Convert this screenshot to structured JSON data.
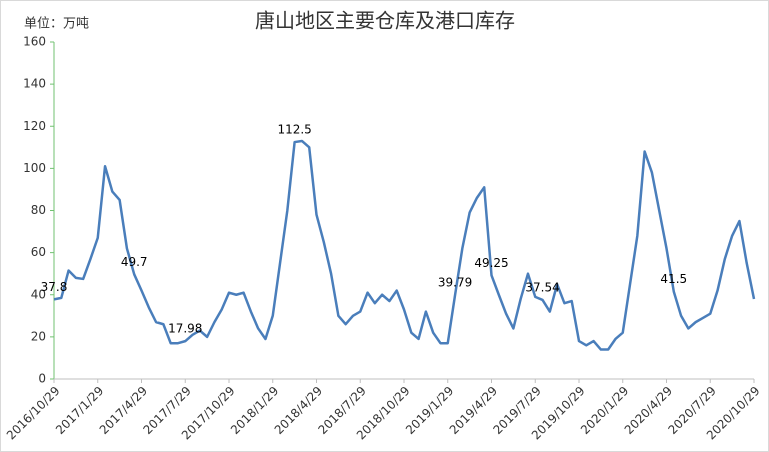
{
  "chart_data": {
    "type": "line",
    "title": "唐山地区主要仓库及港口库存",
    "unit_label": "单位：万吨",
    "categories": [
      "2016/10/29",
      null,
      null,
      null,
      null,
      null,
      "2017/1/29",
      null,
      null,
      null,
      null,
      null,
      "2017/4/29",
      null,
      null,
      null,
      null,
      null,
      "2017/7/29",
      null,
      null,
      null,
      null,
      null,
      "2017/10/29",
      null,
      null,
      null,
      null,
      null,
      "2018/1/29",
      null,
      null,
      null,
      null,
      null,
      "2018/4/29",
      null,
      null,
      null,
      null,
      null,
      "2018/7/29",
      null,
      null,
      null,
      null,
      null,
      "2018/10/29",
      null,
      null,
      null,
      null,
      null,
      "2019/1/29",
      null,
      null,
      null,
      null,
      null,
      "2019/4/29",
      null,
      null,
      null,
      null,
      null,
      "2019/7/29",
      null,
      null,
      null,
      null,
      null,
      "2019/10/29",
      null,
      null,
      null,
      null,
      null,
      "2020/1/29",
      null,
      null,
      null,
      null,
      null,
      "2020/4/29",
      null,
      null,
      null,
      null,
      null,
      "2020/7/29",
      null,
      null,
      null,
      null,
      null,
      "2020/10/29"
    ],
    "values": [
      37.8,
      38.5,
      51.5,
      48,
      47.5,
      57,
      67,
      101,
      89,
      85,
      62,
      49.7,
      42,
      34,
      27,
      26,
      17,
      17,
      17.98,
      21,
      23,
      20,
      27,
      33,
      41,
      40,
      41,
      32,
      24,
      19,
      30,
      55,
      80,
      112.5,
      113,
      110,
      78,
      65,
      50,
      30,
      26,
      30,
      32,
      41,
      36,
      40,
      37,
      42,
      33,
      22,
      19,
      32,
      22,
      17,
      17,
      39.79,
      62,
      79,
      86,
      91,
      49.25,
      40,
      31,
      24,
      38,
      50,
      39,
      37.54,
      32,
      45,
      36,
      37,
      18,
      16,
      18,
      14,
      14,
      19,
      22,
      45,
      68,
      108,
      98,
      80,
      62,
      41.5,
      30,
      24,
      27,
      29,
      31,
      42,
      57,
      68,
      75,
      55,
      38
    ],
    "value_labels": [
      "37.8",
      null,
      null,
      null,
      null,
      null,
      null,
      null,
      null,
      null,
      null,
      "49.7",
      null,
      null,
      null,
      null,
      null,
      null,
      "17.98",
      null,
      null,
      null,
      null,
      null,
      null,
      null,
      null,
      null,
      null,
      null,
      null,
      null,
      null,
      "112.5",
      null,
      null,
      null,
      null,
      null,
      null,
      null,
      null,
      null,
      null,
      null,
      null,
      null,
      null,
      null,
      null,
      null,
      null,
      null,
      null,
      null,
      "39.79",
      null,
      null,
      null,
      null,
      "49.25",
      null,
      null,
      null,
      null,
      null,
      null,
      "37.54",
      null,
      null,
      null,
      null,
      null,
      null,
      null,
      null,
      null,
      null,
      null,
      null,
      null,
      null,
      null,
      null,
      null,
      "41.5",
      null,
      null,
      null,
      null,
      null,
      null,
      null,
      null,
      null,
      null,
      null
    ],
    "color": "#4a7ebb",
    "ylim": [
      0,
      160
    ],
    "yticks": [
      0,
      20,
      40,
      60,
      80,
      100,
      120,
      140,
      160
    ]
  }
}
